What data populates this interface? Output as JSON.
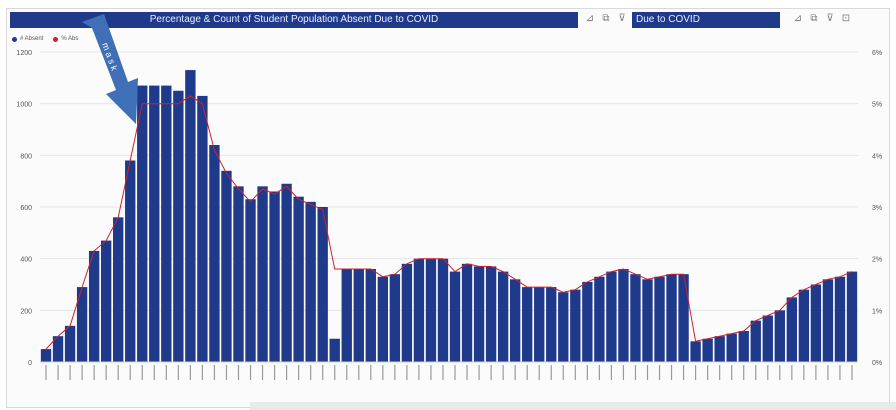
{
  "header": {
    "title": "Percentage & Count of Student Population Absent Due to COVID",
    "title2": "Due to COVID"
  },
  "legend": [
    {
      "label": "# Absent",
      "color": "#1f3a8a"
    },
    {
      "label": "% Abs",
      "color": "#d0202a"
    }
  ],
  "annotation": {
    "text": "m a s k",
    "color": "#3f6fb6"
  },
  "chart_data": {
    "type": "bar",
    "title": "Percentage & Count of Student Population Absent Due to COVID",
    "y_left_ticks": [
      "0",
      "200",
      "400",
      "600",
      "800",
      "1000",
      "1200"
    ],
    "y_right_ticks": [
      "0%",
      "1%",
      "2%",
      "3%",
      "4%",
      "5%",
      "6%"
    ],
    "ylim": [
      0,
      1200
    ],
    "y2lim": [
      0,
      6
    ],
    "grid": true,
    "series": [
      {
        "type": "bar",
        "color": "#1f3a8a",
        "values": [
          50,
          100,
          140,
          290,
          430,
          470,
          560,
          780,
          1070,
          1070,
          1070,
          1050,
          1130,
          1030,
          840,
          740,
          680,
          630,
          680,
          660,
          690,
          640,
          620,
          600,
          90,
          360,
          360,
          360,
          330,
          340,
          380,
          400,
          400,
          400,
          350,
          380,
          370,
          370,
          350,
          320,
          290,
          290,
          290,
          270,
          280,
          310,
          330,
          350,
          360,
          340,
          320,
          330,
          340,
          340,
          80,
          90,
          100,
          110,
          120,
          160,
          180,
          200,
          250,
          280,
          300,
          320,
          330,
          350
        ]
      },
      {
        "type": "line",
        "color": "#d0202a",
        "axis": "right",
        "values": [
          0.25,
          0.5,
          0.7,
          1.45,
          2.15,
          2.35,
          2.8,
          3.9,
          5.0,
          5.0,
          5.0,
          5.0,
          5.15,
          5.0,
          4.1,
          3.65,
          3.35,
          3.1,
          3.35,
          3.25,
          3.4,
          3.15,
          3.05,
          2.95,
          1.8,
          1.8,
          1.8,
          1.8,
          1.65,
          1.7,
          1.9,
          2.0,
          2.0,
          2.0,
          1.75,
          1.9,
          1.85,
          1.85,
          1.75,
          1.6,
          1.45,
          1.45,
          1.45,
          1.35,
          1.4,
          1.55,
          1.65,
          1.75,
          1.8,
          1.7,
          1.6,
          1.65,
          1.7,
          1.7,
          0.4,
          0.45,
          0.5,
          0.55,
          0.6,
          0.8,
          0.9,
          1.0,
          1.25,
          1.4,
          1.5,
          1.6,
          1.65,
          1.75
        ]
      }
    ]
  }
}
